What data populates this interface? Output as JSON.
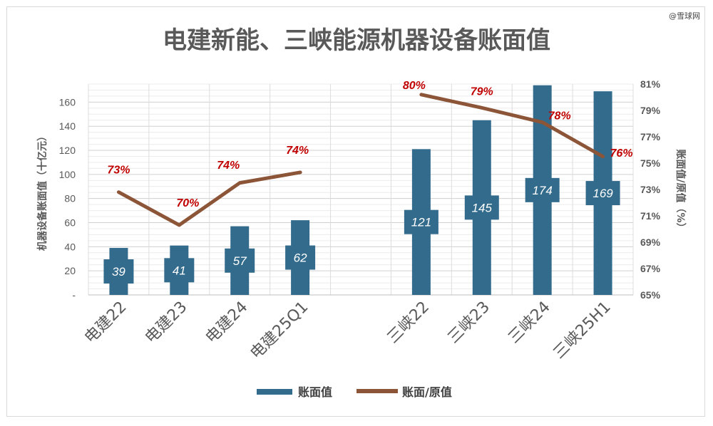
{
  "watermark": "@雪球网",
  "chart_data": {
    "type": "bar",
    "title": "电建新能、三峡能源机器设备账面值",
    "categories": [
      "电建22",
      "电建23",
      "电建24",
      "电建25Q1",
      "",
      "三峡22",
      "三峡23",
      "三峡24",
      "三峡25H1"
    ],
    "ylabel_left": "机器设备账面值（十亿元）",
    "ylabel_right": "账面值/原值（%）",
    "ylim_left": [
      0,
      175
    ],
    "ylim_right": [
      65,
      81
    ],
    "yticks_left": [
      "-",
      "20",
      "40",
      "60",
      "80",
      "100",
      "120",
      "140",
      "160"
    ],
    "yticks_right": [
      "65%",
      "67%",
      "69%",
      "71%",
      "73%",
      "75%",
      "77%",
      "79%",
      "81%"
    ],
    "legend_position": "bottom",
    "series": [
      {
        "name": "账面值",
        "type": "bar",
        "color": "#336b8c",
        "values": [
          39,
          41,
          57,
          62,
          null,
          121,
          145,
          174,
          169
        ],
        "labels": [
          "39",
          "41",
          "57",
          "62",
          "",
          "121",
          "145",
          "174",
          "169"
        ]
      },
      {
        "name": "账面/原值",
        "type": "line",
        "color": "#8c5538",
        "values": [
          72.8,
          70.3,
          73.5,
          74.3,
          null,
          80.2,
          79.2,
          78.1,
          75.5
        ],
        "labels": [
          "73%",
          "70%",
          "74%",
          "74%",
          "",
          "80%",
          "79%",
          "78%",
          "76%"
        ]
      }
    ]
  }
}
